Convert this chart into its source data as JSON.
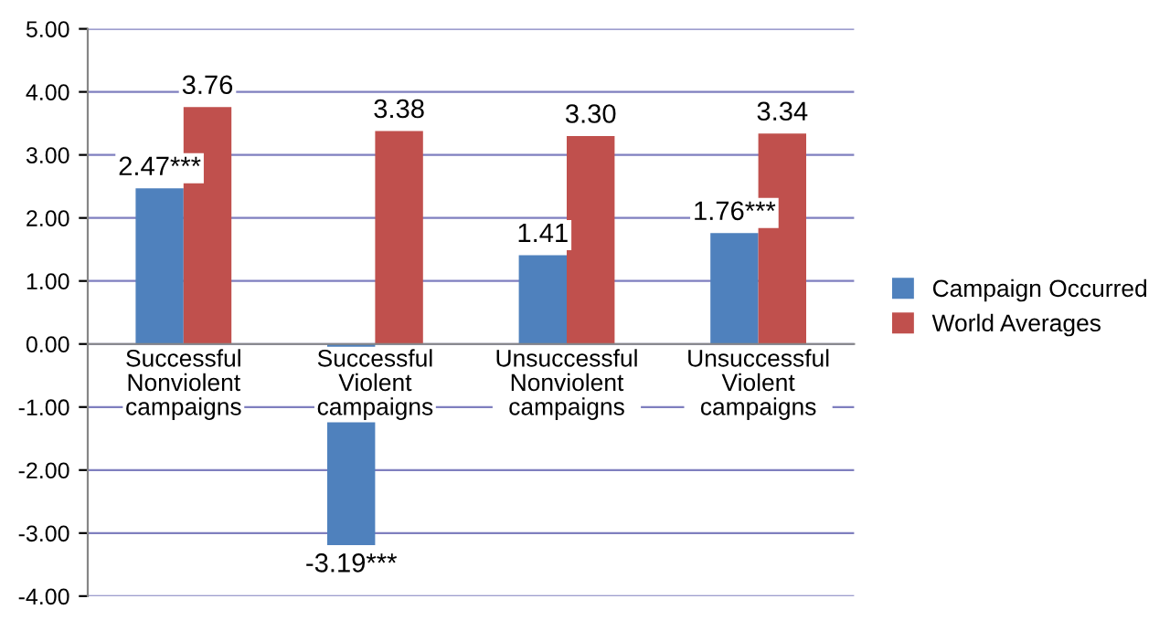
{
  "chart_data": {
    "type": "bar",
    "categories": [
      "Successful\nNonviolent\ncampaigns",
      "Successful\nViolent\ncampaigns",
      "Unsuccessful\nNonviolent\ncampaigns",
      "Unsuccessful\nViolent\ncampaigns"
    ],
    "series": [
      {
        "name": "Campaign Occurred",
        "color": "#4f81bd",
        "values": [
          2.47,
          -3.19,
          1.41,
          1.76
        ],
        "value_labels": [
          "2.47***",
          "-3.19***",
          "1.41",
          "1.76***"
        ]
      },
      {
        "name": "World Averages",
        "color": "#c0504d",
        "values": [
          3.76,
          3.38,
          3.3,
          3.34
        ],
        "value_labels": [
          "3.76",
          "3.38",
          "3.30",
          "3.34"
        ]
      }
    ],
    "ylim": [
      -4,
      5
    ],
    "yticks": [
      {
        "value": 5,
        "label": "5.00"
      },
      {
        "value": 4,
        "label": "4.00"
      },
      {
        "value": 3,
        "label": "3.00"
      },
      {
        "value": 2,
        "label": "2.00"
      },
      {
        "value": 1,
        "label": "1.00"
      },
      {
        "value": 0,
        "label": "0.00"
      },
      {
        "value": -1,
        "label": "-1.00"
      },
      {
        "value": -2,
        "label": "-2.00"
      },
      {
        "value": -3,
        "label": "-3.00"
      },
      {
        "value": -4,
        "label": "-4.00"
      }
    ],
    "grid": "y",
    "legend": "right"
  }
}
